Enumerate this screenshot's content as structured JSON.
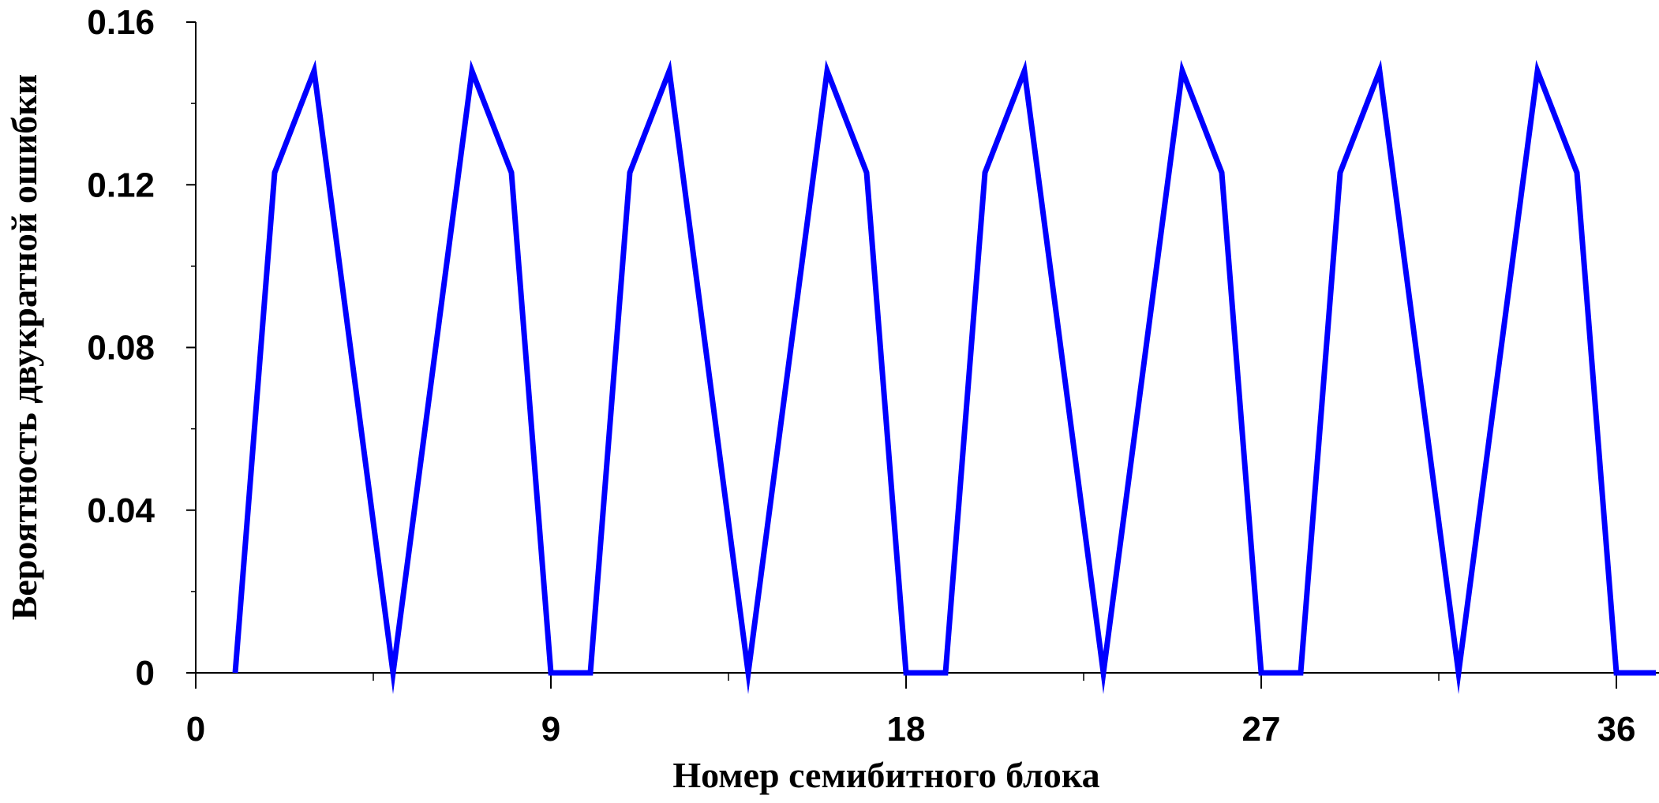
{
  "chart_data": {
    "type": "line",
    "title": "",
    "xlabel": "Номер семибитного блока",
    "ylabel": "Вероятность двукратной ошибки",
    "xlim": [
      0,
      37
    ],
    "ylim": [
      0,
      0.16
    ],
    "x_ticks": [
      {
        "value": 0,
        "label": "0"
      },
      {
        "value": 9,
        "label": "9"
      },
      {
        "value": 18,
        "label": "18"
      },
      {
        "value": 27,
        "label": "27"
      },
      {
        "value": 36,
        "label": "36"
      }
    ],
    "y_ticks": [
      {
        "value": 0,
        "label": "0"
      },
      {
        "value": 0.04,
        "label": "0.04"
      },
      {
        "value": 0.08,
        "label": "0.08"
      },
      {
        "value": 0.12,
        "label": "0.12"
      },
      {
        "value": 0.16,
        "label": "0.16"
      }
    ],
    "grid": false,
    "series": [
      {
        "color": "#0000ff",
        "x": [
          1,
          2,
          3,
          4,
          5,
          6,
          7,
          8,
          9,
          10,
          11,
          12,
          13,
          14,
          15,
          16,
          17,
          18,
          19,
          20,
          21,
          22,
          23,
          24,
          25,
          26,
          27,
          28,
          29,
          30,
          31,
          32,
          33,
          34,
          35,
          36,
          37
        ],
        "y": [
          0,
          0.123,
          0.148,
          0.074,
          0,
          0.074,
          0.148,
          0.123,
          0,
          0,
          0.123,
          0.148,
          0.074,
          0,
          0.074,
          0.148,
          0.123,
          0,
          0,
          0.123,
          0.148,
          0.074,
          0,
          0.074,
          0.148,
          0.123,
          0,
          0,
          0.123,
          0.148,
          0.074,
          0,
          0.074,
          0.148,
          0.123,
          0,
          0
        ]
      }
    ]
  }
}
